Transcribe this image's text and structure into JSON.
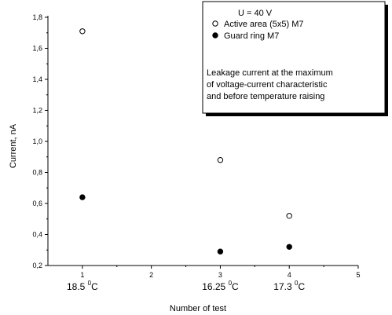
{
  "chart_data": {
    "type": "scatter",
    "xlabel": "Number of test",
    "ylabel": "Current, nA",
    "xlim": [
      0.5,
      5
    ],
    "ylim": [
      0.2,
      1.8
    ],
    "x_ticks": [
      1,
      2,
      3,
      4,
      5
    ],
    "y_ticks": [
      "0,2",
      "0,4",
      "0,6",
      "0,8",
      "1,0",
      "1,2",
      "1,4",
      "1,6",
      "1,8"
    ],
    "y_tick_values": [
      0.2,
      0.4,
      0.6,
      0.8,
      1.0,
      1.2,
      1.4,
      1.6,
      1.8
    ],
    "grid": false,
    "legend": {
      "placement": "top-right",
      "header": "U = 40 V",
      "note": [
        "Leakage current at the maximum",
        "of voltage-current characteristic",
        "and before temperature raising"
      ]
    },
    "series": [
      {
        "name": "Active area (5x5) M7",
        "marker": "open-circle",
        "x": [
          1,
          3,
          4
        ],
        "y": [
          1.71,
          0.88,
          0.52
        ]
      },
      {
        "name": "Guard ring M7",
        "marker": "filled-circle",
        "x": [
          1,
          3,
          4
        ],
        "y": [
          0.64,
          0.29,
          0.32
        ]
      }
    ],
    "temperature_labels": [
      {
        "x": 1,
        "value": "18.5",
        "unit": "C",
        "sup": "0"
      },
      {
        "x": 3,
        "value": "16.25",
        "unit": "C",
        "sup": "0"
      },
      {
        "x": 4,
        "value": "17.3",
        "unit": "C",
        "sup": "0"
      }
    ]
  }
}
